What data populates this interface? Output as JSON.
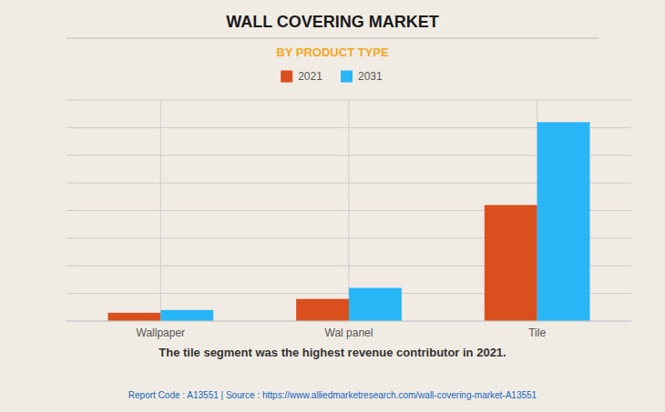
{
  "chart_data": {
    "type": "bar",
    "title": "WALL COVERING MARKET",
    "subtitle": "BY PRODUCT TYPE",
    "categories": [
      "Wallpaper",
      "Wal panel",
      "Tile"
    ],
    "series": [
      {
        "name": "2021",
        "color": "#D94F1E",
        "values": [
          3,
          8,
          42
        ]
      },
      {
        "name": "2031",
        "color": "#29B6F6",
        "values": [
          4,
          12,
          72
        ]
      }
    ],
    "ylim": [
      0,
      80
    ],
    "yticks": [
      0,
      10,
      20,
      30,
      40,
      50,
      60,
      70,
      80
    ],
    "grid": true,
    "legend": "upper center",
    "tick_labels": "x",
    "annotation": "The tile segment was the highest revenue contributor in 2021.",
    "source": "Report Code : A13551  |  Source : https://www.alliedmarketresearch.com/wall-covering-market-A13551"
  }
}
